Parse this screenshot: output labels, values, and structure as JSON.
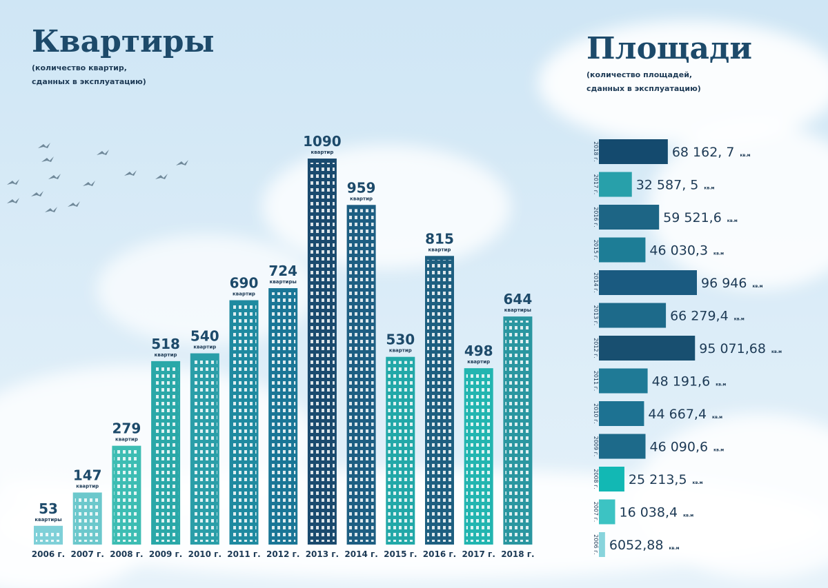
{
  "chart_data": [
    {
      "type": "building-bar",
      "title": "Квартиры",
      "subtitle": [
        "(количество квартир,",
        "сданных в эксплуатацию)"
      ],
      "categories": [
        "2006 г.",
        "2007 г.",
        "2008 г.",
        "2009 г.",
        "2010 г.",
        "2011 г.",
        "2012 г.",
        "2013 г.",
        "2014 г.",
        "2015 г.",
        "2016 г.",
        "2017 г.",
        "2018 г."
      ],
      "values": [
        53,
        147,
        279,
        518,
        540,
        690,
        724,
        1090,
        959,
        530,
        815,
        498,
        644
      ],
      "unit_labels": [
        "квартиры",
        "квартир",
        "квартир",
        "квартир",
        "квартир",
        "квартир",
        "квартиры",
        "квартир",
        "квартир",
        "квартир",
        "квартир",
        "квартир",
        "квартиры"
      ],
      "colors": [
        "#7fd0d8",
        "#6cc8cc",
        "#3dbdb3",
        "#2aa8a8",
        "#2a9ea8",
        "#1f8aa0",
        "#1a7696",
        "#1a4a6e",
        "#1d5e82",
        "#22a8a8",
        "#1e5f80",
        "#22b5b0",
        "#2a96a0"
      ]
    },
    {
      "type": "hbar",
      "title": "Площади",
      "subtitle": [
        "(количество площадей,",
        "сданных в эксплуатацию)"
      ],
      "categories": [
        "2018 г.",
        "2017 г.",
        "2016 г.",
        "2015 г.",
        "2014 г.",
        "2013 г.",
        "2012 г.",
        "2011 г.",
        "2010 г.",
        "2009 г.",
        "2008 г.",
        "2007 г.",
        "2006 г."
      ],
      "values": [
        68162.7,
        32587.5,
        59521.6,
        46030.3,
        96946,
        66279.4,
        95071.68,
        48191.6,
        44667.4,
        46090.6,
        25213.5,
        16038.4,
        6052.88
      ],
      "value_labels": [
        "68 162, 7",
        "32 587, 5",
        "59 521,6",
        "46 030,3",
        "96 946",
        "66 279,4",
        "95 071,68",
        "48 191,6",
        "44 667,4",
        "46 090,6",
        "25 213,5",
        "16 038,4",
        "6052,88"
      ],
      "unit": "кв.м",
      "colors": [
        "#144a6e",
        "#28a0aa",
        "#1d6585",
        "#1d7d96",
        "#1a5a80",
        "#1d6a8a",
        "#184f70",
        "#1f7a96",
        "#1d7292",
        "#1d6a8a",
        "#12b8b4",
        "#3cc3c3",
        "#88d4dc"
      ]
    }
  ]
}
